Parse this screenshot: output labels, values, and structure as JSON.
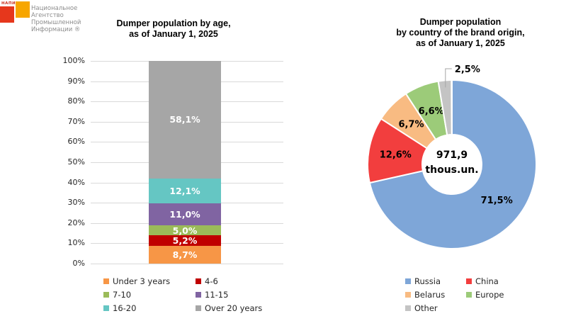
{
  "logo": {
    "brand": "НАПИ",
    "name": "Национальное\nАгентство\nПромышленной\nИнформации ®"
  },
  "chart_data": [
    {
      "type": "bar",
      "subtype": "stacked-column-100",
      "title": "Dumper population by age,\nas of January 1, 2025",
      "categories": [
        "Dumper population by age"
      ],
      "series": [
        {
          "name": "Under 3 years",
          "value": 8.7,
          "label": "8,7%",
          "color": "#F79646"
        },
        {
          "name": "4-6",
          "value": 5.2,
          "label": "5,2%",
          "color": "#C00000"
        },
        {
          "name": "7-10",
          "value": 5.0,
          "label": "5,0%",
          "color": "#9BBB59"
        },
        {
          "name": "11-15",
          "value": 11.0,
          "label": "11,0%",
          "color": "#8064A2"
        },
        {
          "name": "16-20",
          "value": 12.1,
          "label": "12,1%",
          "color": "#65C6C3"
        },
        {
          "name": "Over 20 years",
          "value": 58.1,
          "label": "58,1%",
          "color": "#A6A6A6"
        }
      ],
      "ylim": [
        0,
        100
      ],
      "yticks": [
        "0%",
        "10%",
        "20%",
        "30%",
        "40%",
        "50%",
        "60%",
        "70%",
        "80%",
        "90%",
        "100%"
      ],
      "grid": true,
      "legend_position": "bottom"
    },
    {
      "type": "pie",
      "subtype": "donut",
      "title": "Dumper population\nby country of the brand origin,\nas of January 1, 2025",
      "center_label": "971,9\nthous.un.",
      "slices": [
        {
          "name": "Russia",
          "value": 71.5,
          "label": "71,5%",
          "color": "#7EA6D8"
        },
        {
          "name": "China",
          "value": 12.6,
          "label": "12,6%",
          "color": "#F23E3E"
        },
        {
          "name": "Belarus",
          "value": 6.7,
          "label": "6,7%",
          "color": "#F8BB82"
        },
        {
          "name": "Europe",
          "value": 6.6,
          "label": "6,6%",
          "color": "#9CCB79"
        },
        {
          "name": "Other",
          "value": 2.5,
          "label": "2,5%",
          "color": "#C4C4C4",
          "label_outside": true
        }
      ],
      "legend_position": "bottom"
    }
  ]
}
